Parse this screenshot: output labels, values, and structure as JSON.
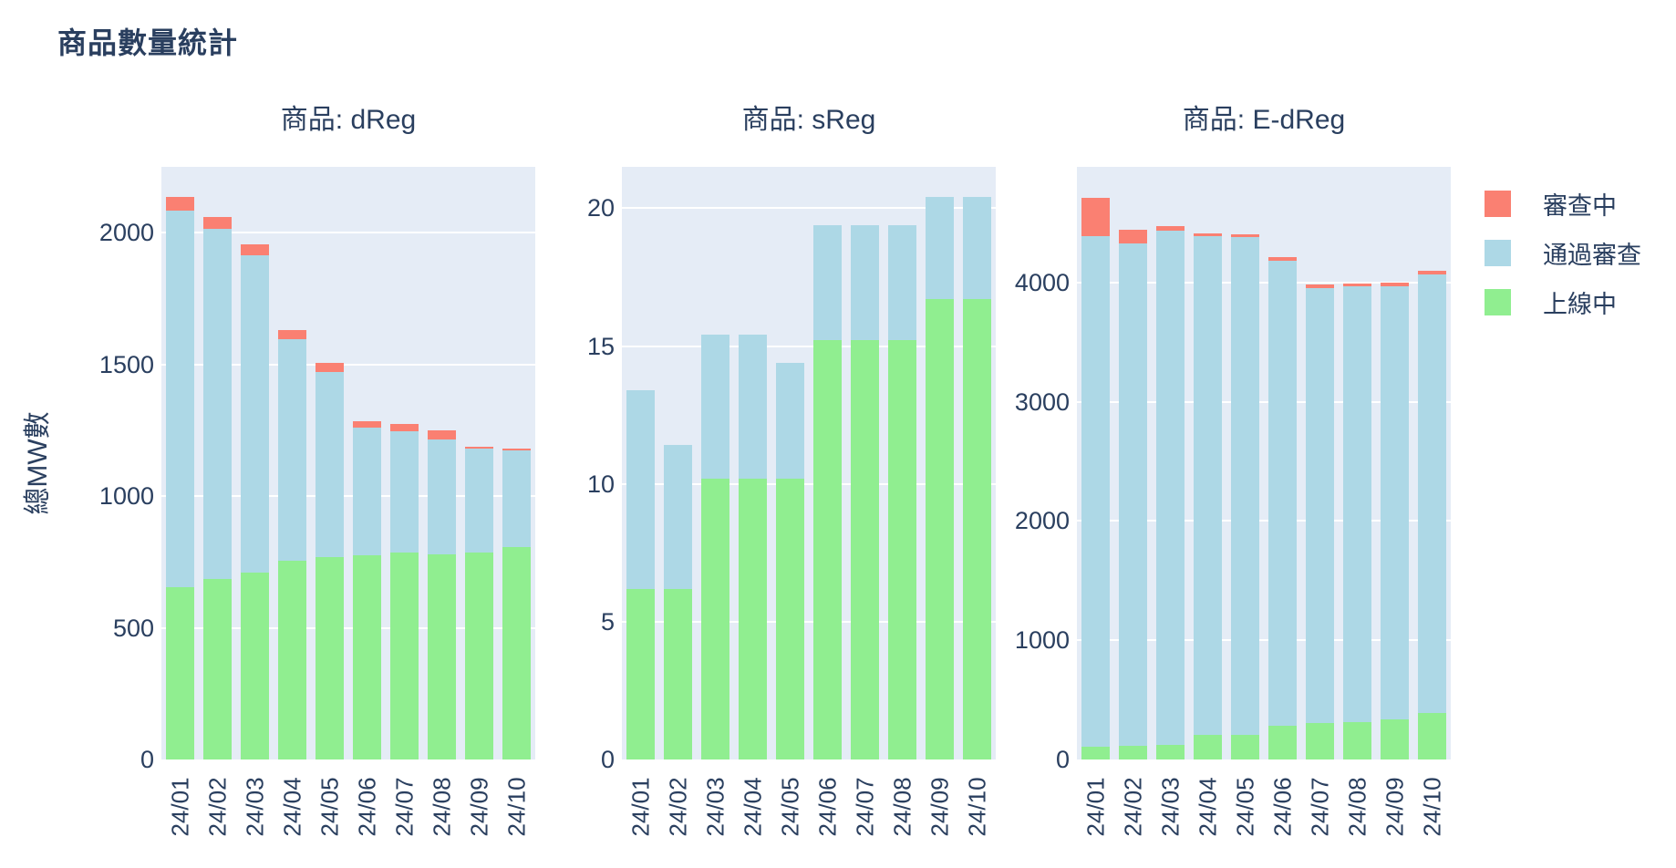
{
  "page": {
    "title": "商品數量統計"
  },
  "y_axis_title": "總MW數",
  "colors": {
    "plot_bg": "#E5ECF6",
    "grid": "#FFFFFF",
    "text": "#2A3F5F",
    "red": "#FA8072",
    "blue": "#ADD8E6",
    "green": "#90EE90"
  },
  "legend": {
    "items": [
      {
        "label": "審查中",
        "key": "under-review",
        "color": "#FA8072"
      },
      {
        "label": "通過審查",
        "key": "approved",
        "color": "#ADD8E6"
      },
      {
        "label": "上線中",
        "key": "online",
        "color": "#90EE90"
      }
    ]
  },
  "chart_data": [
    {
      "type": "bar",
      "stacked": true,
      "title": "商品: dReg",
      "ylabel": "總MW數",
      "categories": [
        "24/01",
        "24/02",
        "24/03",
        "24/04",
        "24/05",
        "24/06",
        "24/07",
        "24/08",
        "24/09",
        "24/10"
      ],
      "series": [
        {
          "name": "上線中",
          "key": "online",
          "color": "#90EE90",
          "values": [
            655,
            685,
            710,
            755,
            770,
            775,
            785,
            780,
            785,
            805
          ]
        },
        {
          "name": "通過審查",
          "key": "approved",
          "color": "#ADD8E6",
          "values": [
            1430,
            1330,
            1205,
            840,
            700,
            485,
            460,
            435,
            395,
            370
          ]
        },
        {
          "name": "審查中",
          "key": "under-review",
          "color": "#FA8072",
          "values": [
            50,
            45,
            40,
            35,
            35,
            25,
            30,
            35,
            8,
            6
          ]
        }
      ],
      "totals": [
        2135,
        2060,
        1955,
        1630,
        1505,
        1285,
        1275,
        1250,
        1188,
        1181
      ],
      "yticks": [
        0,
        500,
        1000,
        1500,
        2000
      ],
      "ylim": [
        0,
        2250
      ],
      "grid": true,
      "legend_position": "top-right"
    },
    {
      "type": "bar",
      "stacked": true,
      "title": "商品: sReg",
      "ylabel": "總MW數",
      "categories": [
        "24/01",
        "24/02",
        "24/03",
        "24/04",
        "24/05",
        "24/06",
        "24/07",
        "24/08",
        "24/09",
        "24/10"
      ],
      "series": [
        {
          "name": "上線中",
          "key": "online",
          "color": "#90EE90",
          "values": [
            6.2,
            6.2,
            10.2,
            10.2,
            10.2,
            15.2,
            15.2,
            15.2,
            16.7,
            16.7
          ]
        },
        {
          "name": "通過審查",
          "key": "approved",
          "color": "#ADD8E6",
          "values": [
            7.2,
            5.2,
            5.2,
            5.2,
            4.2,
            4.2,
            4.2,
            4.2,
            3.7,
            3.7
          ]
        },
        {
          "name": "審查中",
          "key": "under-review",
          "color": "#FA8072",
          "values": [
            0,
            0,
            0,
            0,
            0,
            0,
            0,
            0,
            0,
            0
          ]
        }
      ],
      "totals": [
        13.4,
        11.4,
        15.4,
        15.4,
        14.4,
        19.4,
        19.4,
        19.4,
        20.4,
        20.4
      ],
      "yticks": [
        0,
        5,
        10,
        15,
        20
      ],
      "ylim": [
        0,
        21.5
      ],
      "grid": true,
      "legend_position": "top-right"
    },
    {
      "type": "bar",
      "stacked": true,
      "title": "商品: E-dReg",
      "ylabel": "總MW數",
      "categories": [
        "24/01",
        "24/02",
        "24/03",
        "24/04",
        "24/05",
        "24/06",
        "24/07",
        "24/08",
        "24/09",
        "24/10"
      ],
      "series": [
        {
          "name": "上線中",
          "key": "online",
          "color": "#90EE90",
          "values": [
            110,
            115,
            120,
            210,
            205,
            280,
            305,
            310,
            340,
            390
          ]
        },
        {
          "name": "通過審查",
          "key": "approved",
          "color": "#ADD8E6",
          "values": [
            4280,
            4215,
            4315,
            4180,
            4175,
            3905,
            3650,
            3660,
            3630,
            3680
          ]
        },
        {
          "name": "審查中",
          "key": "under-review",
          "color": "#FA8072",
          "values": [
            320,
            115,
            40,
            25,
            25,
            30,
            30,
            25,
            30,
            30
          ]
        }
      ],
      "totals": [
        4710,
        4445,
        4475,
        4415,
        4405,
        4215,
        3985,
        3995,
        4000,
        4100
      ],
      "yticks": [
        0,
        1000,
        2000,
        3000,
        4000
      ],
      "ylim": [
        0,
        4970
      ],
      "grid": true,
      "legend_position": "top-right"
    }
  ]
}
